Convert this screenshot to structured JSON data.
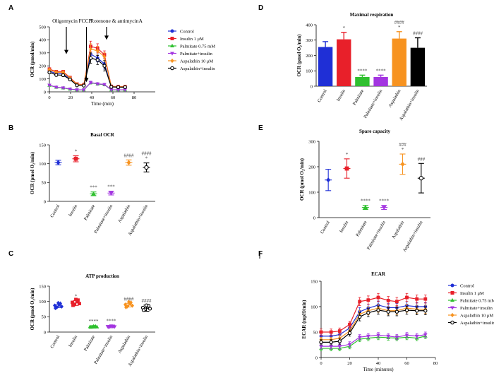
{
  "colors": {
    "blue": "#1f2fd6",
    "red": "#e8202a",
    "green": "#2fc02f",
    "purple": "#a335e0",
    "orange": "#f79320",
    "black": "#000000"
  },
  "chart_data": [
    {
      "panel": "A",
      "type": "line",
      "title": "",
      "xlabel": "Time (min)",
      "ylabel": "OCR (pmol/min)",
      "xlim": [
        0,
        100
      ],
      "ylim": [
        0,
        500
      ],
      "xticks": [
        0,
        20,
        40,
        60,
        80
      ],
      "yticks": [
        0,
        100,
        200,
        300,
        400,
        500
      ],
      "x": [
        0,
        6.5,
        13,
        19.5,
        26,
        32.5,
        39,
        45.5,
        52,
        58.5,
        65,
        71.5
      ],
      "annotations": [
        {
          "label": "Oligomycin",
          "x": 16
        },
        {
          "label": "FCCP",
          "x": 35
        },
        {
          "label": "Rotenone & antimycinA",
          "x": 54
        }
      ],
      "series": [
        {
          "name": "Control",
          "color": "blue",
          "marker": "circle",
          "values": [
            160,
            140,
            140,
            100,
            55,
            50,
            290,
            260,
            215,
            40,
            38,
            38
          ],
          "err": [
            10,
            10,
            10,
            10,
            8,
            8,
            40,
            30,
            40,
            5,
            5,
            5
          ]
        },
        {
          "name": "Insulin 1 μM",
          "color": "red",
          "marker": "square",
          "values": [
            175,
            155,
            155,
            110,
            60,
            55,
            350,
            335,
            285,
            42,
            40,
            40
          ],
          "err": [
            10,
            10,
            10,
            10,
            8,
            8,
            40,
            35,
            30,
            5,
            5,
            5
          ]
        },
        {
          "name": "Palmitate 0.75 mM",
          "color": "green",
          "marker": "triangle",
          "values": [
            50,
            35,
            30,
            20,
            15,
            15,
            70,
            60,
            55,
            15,
            15,
            15
          ],
          "err": [
            5,
            5,
            5,
            4,
            4,
            4,
            10,
            8,
            8,
            3,
            3,
            3
          ]
        },
        {
          "name": "Palmitate+insulin",
          "color": "purple",
          "marker": "triangle-down",
          "values": [
            52,
            36,
            31,
            22,
            16,
            16,
            72,
            62,
            57,
            16,
            16,
            16
          ],
          "err": [
            5,
            5,
            5,
            4,
            4,
            4,
            10,
            8,
            8,
            3,
            3,
            3
          ]
        },
        {
          "name": "Aspalathin 10 μM",
          "color": "orange",
          "marker": "diamond",
          "values": [
            170,
            150,
            150,
            105,
            58,
            52,
            330,
            315,
            270,
            41,
            39,
            39
          ],
          "err": [
            10,
            10,
            10,
            10,
            8,
            8,
            40,
            35,
            30,
            5,
            5,
            5
          ]
        },
        {
          "name": "Aspalathin+insulin",
          "color": "black",
          "marker": "circle-open",
          "values": [
            150,
            130,
            128,
            95,
            50,
            48,
            260,
            245,
            200,
            38,
            36,
            36
          ],
          "err": [
            10,
            10,
            10,
            10,
            8,
            8,
            40,
            35,
            40,
            5,
            5,
            5
          ]
        }
      ]
    },
    {
      "panel": "B",
      "type": "scatter",
      "title": "Basal OCR",
      "ylabel": "OCR (pmol O₂/min)",
      "ylim": [
        0,
        150
      ],
      "yticks": [
        0,
        50,
        100,
        150
      ],
      "categories": [
        "Control",
        "Insulin",
        "Palmitate",
        "Palmitate+insulin",
        "Aspalathin",
        "Aspalathin+insulin"
      ],
      "values": [
        103,
        113,
        20,
        22,
        103,
        90
      ],
      "err": [
        6,
        8,
        5,
        5,
        7,
        12
      ],
      "significance": [
        "",
        "*",
        "***",
        "***",
        "####",
        "####\n*"
      ]
    },
    {
      "panel": "C",
      "type": "scatter",
      "title": "ATP production",
      "ylabel": "OCR (pmol O₂/min)",
      "ylim": [
        0,
        150
      ],
      "yticks": [
        0,
        50,
        100,
        150
      ],
      "categories": [
        "Control",
        "Insulin",
        "Palmitate",
        "Palmitate+insulin",
        "Aspalathin",
        "Aspalathin+insulin"
      ],
      "values": [
        85,
        95,
        17,
        18,
        88,
        78
      ],
      "err": [
        5,
        8,
        4,
        4,
        6,
        10
      ],
      "significance": [
        "",
        "*",
        "****",
        "****",
        "####",
        "####"
      ]
    },
    {
      "panel": "D",
      "type": "bar",
      "title": "Maximal respiration",
      "ylabel": "OCR (pmol O₂/min)",
      "ylim": [
        0,
        400
      ],
      "yticks": [
        0,
        100,
        200,
        300,
        400
      ],
      "categories": [
        "Control",
        "Insulin",
        "Palmitate",
        "Palmitate+insulin",
        "Aspalathin",
        "Aspalathin+insulin"
      ],
      "values": [
        255,
        305,
        60,
        60,
        310,
        250
      ],
      "err": [
        35,
        45,
        12,
        12,
        45,
        65
      ],
      "significance": [
        "",
        "*",
        "****",
        "****",
        "####\n*",
        "####"
      ]
    },
    {
      "panel": "E",
      "type": "scatter",
      "title": "Spare capacity",
      "ylabel": "OCR (pmol O₂/min)",
      "ylim": [
        0,
        300
      ],
      "yticks": [
        0,
        100,
        200,
        300
      ],
      "categories": [
        "Control",
        "Insulin",
        "Palmitate",
        "Palmitate+insulin",
        "Aspalathin",
        "Aspalathin+insulin"
      ],
      "values": [
        148,
        193,
        40,
        40,
        210,
        155
      ],
      "err": [
        42,
        38,
        8,
        8,
        40,
        58
      ],
      "significance": [
        "",
        "*",
        "****",
        "****",
        "###\n*",
        "###"
      ]
    },
    {
      "panel": "F",
      "type": "line",
      "title": "ECAR",
      "xlabel": "Time (minutes)",
      "ylabel": "ECAR (mpH/min)",
      "xlim": [
        0,
        80
      ],
      "ylim": [
        0,
        150
      ],
      "xticks": [
        0,
        20,
        40,
        60,
        80
      ],
      "yticks": [
        0,
        50,
        100,
        150
      ],
      "x": [
        0,
        7,
        13,
        20,
        27,
        33,
        40,
        47,
        53,
        60,
        67,
        73
      ],
      "series": [
        {
          "name": "Control",
          "color": "blue",
          "marker": "circle",
          "values": [
            42,
            42,
            45,
            58,
            90,
            97,
            103,
            98,
            98,
            102,
            100,
            100
          ],
          "err": [
            5,
            5,
            6,
            6,
            8,
            8,
            8,
            8,
            8,
            8,
            8,
            8
          ]
        },
        {
          "name": "Insulin 1 μM",
          "color": "red",
          "marker": "square",
          "values": [
            50,
            50,
            52,
            65,
            110,
            113,
            118,
            112,
            110,
            118,
            115,
            115
          ],
          "err": [
            6,
            6,
            6,
            6,
            8,
            8,
            8,
            8,
            8,
            8,
            8,
            8
          ]
        },
        {
          "name": "Palmitate 0.75 mM",
          "color": "green",
          "marker": "triangle",
          "values": [
            18,
            18,
            18,
            22,
            36,
            38,
            40,
            39,
            38,
            40,
            38,
            42
          ],
          "err": [
            5,
            5,
            5,
            5,
            5,
            5,
            5,
            5,
            5,
            5,
            5,
            5
          ]
        },
        {
          "name": "Palmitate+insulin",
          "color": "purple",
          "marker": "triangle-down",
          "values": [
            22,
            22,
            22,
            26,
            40,
            42,
            44,
            42,
            40,
            44,
            42,
            45
          ],
          "err": [
            5,
            5,
            5,
            5,
            5,
            5,
            5,
            5,
            5,
            5,
            5,
            5
          ]
        },
        {
          "name": "Aspalathin 10 μM",
          "color": "orange",
          "marker": "diamond",
          "values": [
            35,
            35,
            38,
            52,
            85,
            92,
            97,
            92,
            92,
            97,
            95,
            95
          ],
          "err": [
            5,
            5,
            6,
            6,
            8,
            8,
            8,
            8,
            8,
            8,
            8,
            8
          ]
        },
        {
          "name": "Aspalathin+insulin",
          "color": "black",
          "marker": "circle-open",
          "values": [
            30,
            30,
            32,
            48,
            80,
            88,
            93,
            90,
            90,
            93,
            92,
            92
          ],
          "err": [
            5,
            5,
            6,
            6,
            8,
            8,
            8,
            8,
            8,
            8,
            8,
            8
          ]
        }
      ]
    }
  ],
  "panel_labels": [
    "A",
    "B",
    "C",
    "D",
    "E",
    "F"
  ]
}
